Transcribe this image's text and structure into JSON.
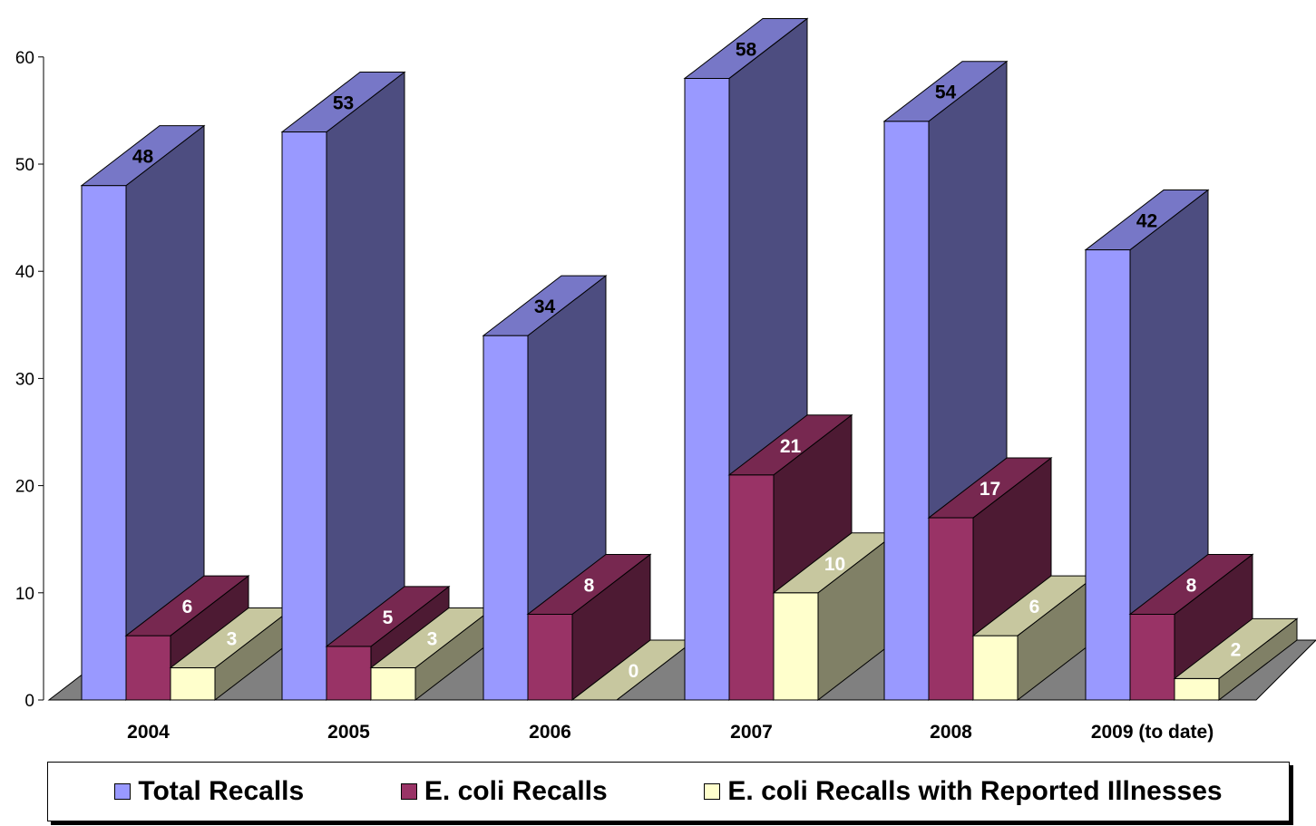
{
  "chart_data": {
    "type": "bar",
    "style": "3d-clustered-column",
    "categories": [
      "2004",
      "2005",
      "2006",
      "2007",
      "2008",
      "2009 (to date)"
    ],
    "series": [
      {
        "name": "Total Recalls",
        "values": [
          48,
          53,
          34,
          58,
          54,
          42
        ],
        "color": "#9999FF",
        "label_color": "#000000"
      },
      {
        "name": "E. coli Recalls",
        "values": [
          6,
          5,
          8,
          21,
          17,
          8
        ],
        "color": "#993366",
        "label_color": "#FFFFFF"
      },
      {
        "name": "E. coli Recalls with Reported Illnesses",
        "values": [
          3,
          3,
          0,
          10,
          6,
          2
        ],
        "color": "#FFFFCC",
        "label_color": "#FFFFFF"
      }
    ],
    "y_ticks": [
      "0",
      "10",
      "20",
      "30",
      "40",
      "50",
      "60"
    ],
    "ylim": [
      0,
      60
    ],
    "legend_position": "bottom",
    "grid": false
  }
}
